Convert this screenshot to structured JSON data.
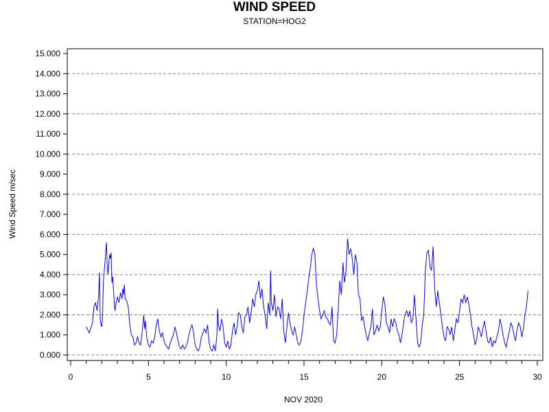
{
  "chart_data": {
    "type": "line",
    "title": "WIND SPEED",
    "subtitle": "STATION=HOG2",
    "xlabel": "NOV 2020",
    "ylabel": "Wind Speed m/sec",
    "xlim": [
      0,
      30
    ],
    "ylim": [
      0,
      15
    ],
    "x_ticks": [
      "0",
      "5",
      "10",
      "15",
      "20",
      "25",
      "30"
    ],
    "y_ticks": [
      "0.000",
      "1.000",
      "2.000",
      "3.000",
      "4.000",
      "5.000",
      "6.000",
      "7.000",
      "8.000",
      "9.000",
      "10.000",
      "11.000",
      "12.000",
      "13.000",
      "14.000",
      "15.000"
    ],
    "grid": "horizontal dashed at even values",
    "line_color": "#0000ff",
    "series": [
      {
        "points": [
          [
            1.0,
            1.4
          ],
          [
            1.2,
            1.1
          ],
          [
            1.4,
            1.6
          ],
          [
            1.5,
            2.4
          ],
          [
            1.6,
            2.6
          ],
          [
            1.7,
            2.2
          ],
          [
            1.8,
            3.0
          ],
          [
            1.85,
            4.1
          ],
          [
            1.9,
            1.8
          ],
          [
            1.95,
            1.5
          ],
          [
            2.0,
            1.4
          ],
          [
            2.05,
            2.0
          ],
          [
            2.1,
            3.6
          ],
          [
            2.2,
            4.6
          ],
          [
            2.3,
            5.6
          ],
          [
            2.35,
            4.4
          ],
          [
            2.4,
            4.0
          ],
          [
            2.5,
            5.0
          ],
          [
            2.55,
            4.8
          ],
          [
            2.6,
            5.1
          ],
          [
            2.65,
            3.6
          ],
          [
            2.7,
            3.9
          ],
          [
            2.8,
            2.6
          ],
          [
            2.85,
            2.2
          ],
          [
            2.9,
            2.5
          ],
          [
            3.0,
            2.9
          ],
          [
            3.1,
            2.6
          ],
          [
            3.2,
            3.1
          ],
          [
            3.3,
            2.8
          ],
          [
            3.35,
            3.3
          ],
          [
            3.4,
            3.0
          ],
          [
            3.45,
            3.5
          ],
          [
            3.5,
            2.8
          ],
          [
            3.6,
            2.7
          ],
          [
            3.7,
            2.4
          ],
          [
            3.8,
            1.5
          ],
          [
            3.9,
            1.0
          ],
          [
            4.0,
            0.9
          ],
          [
            4.1,
            0.5
          ],
          [
            4.2,
            0.6
          ],
          [
            4.3,
            0.9
          ],
          [
            4.4,
            0.6
          ],
          [
            4.5,
            0.5
          ],
          [
            4.6,
            1.2
          ],
          [
            4.7,
            2.0
          ],
          [
            4.75,
            1.3
          ],
          [
            4.8,
            1.7
          ],
          [
            4.9,
            0.8
          ],
          [
            5.0,
            0.5
          ],
          [
            5.1,
            0.4
          ],
          [
            5.2,
            0.7
          ],
          [
            5.3,
            0.6
          ],
          [
            5.4,
            0.9
          ],
          [
            5.5,
            1.5
          ],
          [
            5.6,
            1.8
          ],
          [
            5.7,
            1.2
          ],
          [
            5.8,
            0.9
          ],
          [
            5.9,
            1.1
          ],
          [
            6.0,
            0.7
          ],
          [
            6.1,
            0.5
          ],
          [
            6.2,
            0.4
          ],
          [
            6.3,
            0.3
          ],
          [
            6.4,
            0.6
          ],
          [
            6.5,
            0.8
          ],
          [
            6.6,
            1.0
          ],
          [
            6.7,
            1.4
          ],
          [
            6.8,
            1.1
          ],
          [
            6.9,
            0.7
          ],
          [
            7.0,
            0.4
          ],
          [
            7.1,
            0.3
          ],
          [
            7.2,
            0.5
          ],
          [
            7.3,
            0.3
          ],
          [
            7.4,
            0.4
          ],
          [
            7.5,
            0.6
          ],
          [
            7.6,
            1.0
          ],
          [
            7.7,
            1.3
          ],
          [
            7.8,
            1.5
          ],
          [
            7.9,
            1.1
          ],
          [
            8.0,
            0.5
          ],
          [
            8.1,
            0.3
          ],
          [
            8.2,
            0.2
          ],
          [
            8.3,
            0.4
          ],
          [
            8.4,
            0.9
          ],
          [
            8.5,
            1.1
          ],
          [
            8.6,
            1.3
          ],
          [
            8.7,
            1.1
          ],
          [
            8.8,
            1.5
          ],
          [
            8.9,
            0.6
          ],
          [
            9.0,
            0.3
          ],
          [
            9.1,
            0.2
          ],
          [
            9.2,
            0.5
          ],
          [
            9.3,
            0.2
          ],
          [
            9.4,
            1.0
          ],
          [
            9.45,
            2.3
          ],
          [
            9.5,
            1.5
          ],
          [
            9.6,
            1.2
          ],
          [
            9.7,
            1.8
          ],
          [
            9.8,
            1.4
          ],
          [
            9.9,
            0.6
          ],
          [
            10.0,
            0.4
          ],
          [
            10.1,
            0.7
          ],
          [
            10.2,
            0.3
          ],
          [
            10.3,
            0.5
          ],
          [
            10.4,
            1.2
          ],
          [
            10.5,
            1.6
          ],
          [
            10.6,
            1.0
          ],
          [
            10.7,
            1.4
          ],
          [
            10.8,
            2.1
          ],
          [
            10.9,
            2.0
          ],
          [
            11.0,
            1.4
          ],
          [
            11.1,
            1.1
          ],
          [
            11.2,
            1.9
          ],
          [
            11.3,
            2.0
          ],
          [
            11.4,
            2.4
          ],
          [
            11.5,
            1.6
          ],
          [
            11.6,
            2.1
          ],
          [
            11.7,
            2.8
          ],
          [
            11.8,
            2.4
          ],
          [
            11.9,
            3.0
          ],
          [
            12.0,
            3.2
          ],
          [
            12.1,
            3.7
          ],
          [
            12.2,
            2.8
          ],
          [
            12.3,
            3.3
          ],
          [
            12.4,
            2.4
          ],
          [
            12.5,
            2.0
          ],
          [
            12.6,
            1.3
          ],
          [
            12.7,
            2.6
          ],
          [
            12.8,
            2.0
          ],
          [
            12.85,
            4.2
          ],
          [
            12.9,
            2.6
          ],
          [
            13.0,
            2.2
          ],
          [
            13.1,
            3.0
          ],
          [
            13.2,
            1.9
          ],
          [
            13.3,
            2.4
          ],
          [
            13.4,
            2.3
          ],
          [
            13.5,
            1.8
          ],
          [
            13.6,
            2.8
          ],
          [
            13.7,
            1.2
          ],
          [
            13.8,
            0.6
          ],
          [
            13.9,
            1.4
          ],
          [
            14.0,
            2.1
          ],
          [
            14.1,
            1.6
          ],
          [
            14.2,
            1.2
          ],
          [
            14.3,
            1.0
          ],
          [
            14.4,
            1.4
          ],
          [
            14.5,
            1.0
          ],
          [
            14.6,
            0.6
          ],
          [
            14.7,
            0.5
          ],
          [
            14.8,
            0.7
          ],
          [
            14.9,
            1.2
          ],
          [
            15.0,
            2.0
          ],
          [
            15.1,
            2.6
          ],
          [
            15.2,
            3.1
          ],
          [
            15.3,
            3.8
          ],
          [
            15.4,
            4.3
          ],
          [
            15.5,
            5.0
          ],
          [
            15.6,
            5.3
          ],
          [
            15.7,
            5.0
          ],
          [
            15.8,
            3.5
          ],
          [
            15.9,
            2.8
          ],
          [
            16.0,
            2.2
          ],
          [
            16.1,
            1.8
          ],
          [
            16.2,
            2.0
          ],
          [
            16.3,
            2.2
          ],
          [
            16.4,
            1.9
          ],
          [
            16.5,
            1.8
          ],
          [
            16.6,
            1.6
          ],
          [
            16.7,
            1.5
          ],
          [
            16.8,
            2.4
          ],
          [
            16.9,
            0.7
          ],
          [
            17.0,
            0.6
          ],
          [
            17.1,
            1.0
          ],
          [
            17.2,
            2.3
          ],
          [
            17.3,
            3.7
          ],
          [
            17.4,
            3.0
          ],
          [
            17.5,
            4.6
          ],
          [
            17.6,
            3.6
          ],
          [
            17.7,
            4.2
          ],
          [
            17.8,
            5.8
          ],
          [
            17.9,
            5.0
          ],
          [
            18.0,
            5.3
          ],
          [
            18.1,
            4.8
          ],
          [
            18.2,
            4.0
          ],
          [
            18.3,
            5.0
          ],
          [
            18.4,
            4.6
          ],
          [
            18.5,
            3.0
          ],
          [
            18.6,
            2.8
          ],
          [
            18.7,
            1.7
          ],
          [
            18.8,
            1.9
          ],
          [
            18.9,
            1.4
          ],
          [
            19.0,
            1.0
          ],
          [
            19.1,
            0.7
          ],
          [
            19.2,
            1.1
          ],
          [
            19.3,
            1.4
          ],
          [
            19.4,
            2.3
          ],
          [
            19.5,
            1.0
          ],
          [
            19.6,
            1.2
          ],
          [
            19.7,
            1.5
          ],
          [
            19.8,
            1.2
          ],
          [
            19.9,
            1.4
          ],
          [
            20.0,
            2.2
          ],
          [
            20.1,
            2.9
          ],
          [
            20.2,
            2.5
          ],
          [
            20.3,
            1.6
          ],
          [
            20.4,
            1.4
          ],
          [
            20.5,
            1.1
          ],
          [
            20.6,
            1.8
          ],
          [
            20.7,
            1.4
          ],
          [
            20.8,
            1.8
          ],
          [
            20.9,
            1.6
          ],
          [
            21.0,
            1.2
          ],
          [
            21.1,
            1.0
          ],
          [
            21.2,
            0.6
          ],
          [
            21.3,
            1.0
          ],
          [
            21.4,
            1.6
          ],
          [
            21.5,
            2.0
          ],
          [
            21.6,
            2.2
          ],
          [
            21.7,
            1.9
          ],
          [
            21.8,
            2.2
          ],
          [
            21.9,
            1.6
          ],
          [
            22.0,
            1.8
          ],
          [
            22.1,
            3.0
          ],
          [
            22.2,
            1.8
          ],
          [
            22.3,
            0.6
          ],
          [
            22.4,
            0.4
          ],
          [
            22.5,
            0.6
          ],
          [
            22.6,
            1.5
          ],
          [
            22.7,
            2.0
          ],
          [
            22.8,
            4.2
          ],
          [
            22.9,
            5.1
          ],
          [
            23.0,
            5.2
          ],
          [
            23.1,
            4.4
          ],
          [
            23.2,
            4.2
          ],
          [
            23.3,
            5.4
          ],
          [
            23.4,
            3.3
          ],
          [
            23.5,
            2.4
          ],
          [
            23.6,
            3.2
          ],
          [
            23.7,
            2.6
          ],
          [
            23.8,
            2.0
          ],
          [
            23.9,
            1.4
          ],
          [
            24.0,
            0.9
          ],
          [
            24.1,
            0.7
          ],
          [
            24.2,
            1.4
          ],
          [
            24.3,
            1.3
          ],
          [
            24.4,
            1.0
          ],
          [
            24.5,
            1.4
          ],
          [
            24.6,
            0.7
          ],
          [
            24.7,
            1.3
          ],
          [
            24.8,
            1.8
          ],
          [
            24.9,
            1.6
          ],
          [
            25.0,
            2.2
          ],
          [
            25.1,
            2.8
          ],
          [
            25.2,
            2.6
          ],
          [
            25.3,
            3.0
          ],
          [
            25.4,
            2.6
          ],
          [
            25.5,
            2.9
          ],
          [
            25.6,
            2.5
          ],
          [
            25.7,
            2.0
          ],
          [
            25.8,
            1.4
          ],
          [
            25.9,
            1.0
          ],
          [
            26.0,
            0.5
          ],
          [
            26.1,
            0.8
          ],
          [
            26.2,
            1.4
          ],
          [
            26.3,
            1.2
          ],
          [
            26.4,
            0.9
          ],
          [
            26.5,
            1.3
          ],
          [
            26.6,
            1.7
          ],
          [
            26.7,
            1.2
          ],
          [
            26.8,
            0.7
          ],
          [
            26.9,
            0.6
          ],
          [
            27.0,
            0.9
          ],
          [
            27.1,
            0.4
          ],
          [
            27.2,
            0.7
          ],
          [
            27.3,
            0.6
          ],
          [
            27.4,
            0.9
          ],
          [
            27.5,
            1.2
          ],
          [
            27.6,
            1.8
          ],
          [
            27.7,
            1.4
          ],
          [
            27.8,
            1.0
          ],
          [
            27.9,
            0.6
          ],
          [
            28.0,
            0.4
          ],
          [
            28.1,
            0.8
          ],
          [
            28.2,
            1.2
          ],
          [
            28.3,
            1.6
          ],
          [
            28.4,
            1.4
          ],
          [
            28.5,
            1.0
          ],
          [
            28.6,
            0.7
          ],
          [
            28.7,
            1.3
          ],
          [
            28.8,
            1.6
          ],
          [
            28.9,
            1.4
          ],
          [
            29.0,
            0.9
          ],
          [
            29.1,
            1.3
          ],
          [
            29.2,
            2.0
          ],
          [
            29.3,
            2.4
          ],
          [
            29.4,
            3.2
          ]
        ]
      }
    ]
  }
}
